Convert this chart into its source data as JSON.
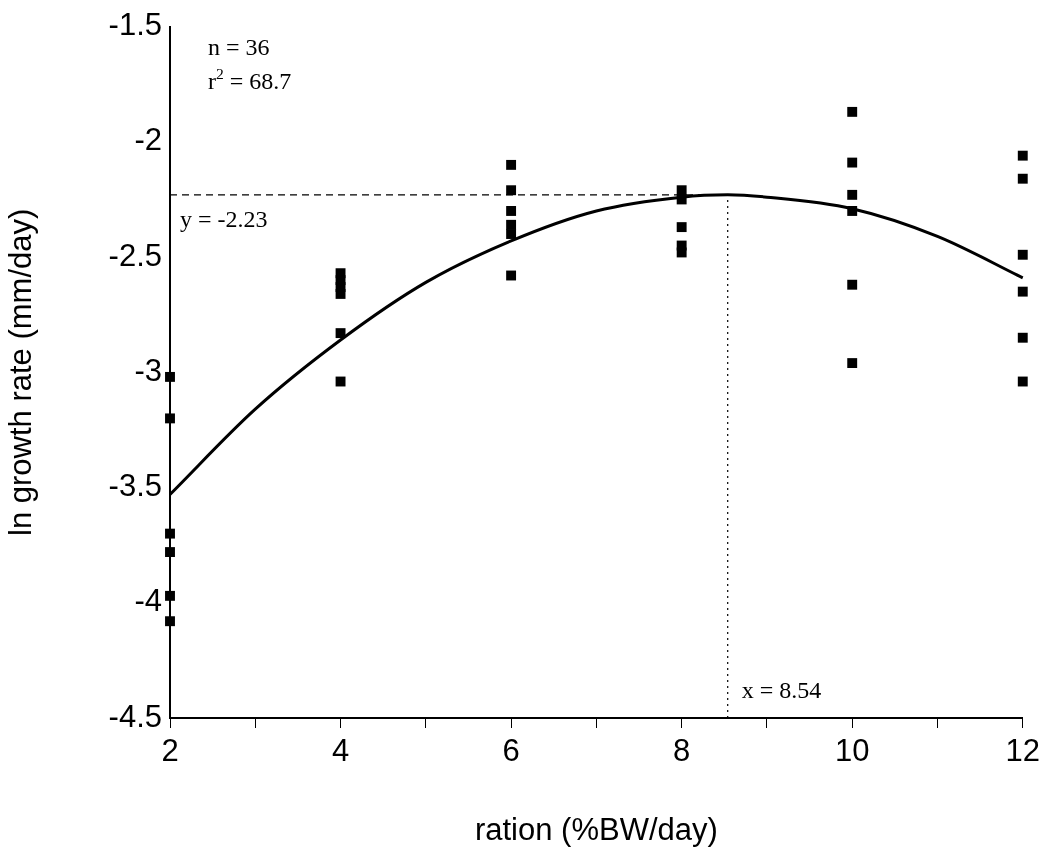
{
  "chart_data": {
    "type": "scatter",
    "xlabel": "ration (%BW/day)",
    "ylabel": "ln growth rate (mm/day)",
    "xlim": [
      2,
      12
    ],
    "ylim": [
      -4.5,
      -1.5
    ],
    "xticks": [
      2,
      {
        "value": 3,
        "label": null
      },
      4,
      {
        "value": 5,
        "label": null
      },
      6,
      {
        "value": 7,
        "label": null
      },
      8,
      {
        "value": 9,
        "label": null
      },
      10,
      {
        "value": 11,
        "label": null
      },
      12
    ],
    "yticks": [
      -4.5,
      -4,
      -3.5,
      -3,
      -2.5,
      -2,
      -1.5
    ],
    "grid": false,
    "legend": false,
    "marker": "square",
    "annotations": [
      "n = 36",
      "r$^{2}$ = 68.7"
    ],
    "ref_lines": [
      {
        "axis": "y",
        "value": -2.23,
        "label": "y = -2.23",
        "line_style": "dashed",
        "color": "#000000"
      },
      {
        "axis": "x",
        "value": 8.54,
        "label": "x = 8.54",
        "line_style": "dotted",
        "color": "#000000"
      }
    ],
    "series": [
      {
        "color": "#000000",
        "x": [
          2,
          2,
          2,
          2,
          2,
          2,
          4,
          4,
          4,
          4,
          4,
          4,
          6,
          6,
          6,
          6,
          6,
          6,
          8,
          8,
          8,
          8,
          8,
          10,
          10,
          10,
          10,
          10,
          10,
          12,
          12,
          12,
          12,
          12,
          12
        ],
        "values": [
          -3.02,
          -3.2,
          -3.7,
          -3.78,
          -3.97,
          -4.08,
          -2.57,
          -2.6,
          -2.63,
          -2.66,
          -2.83,
          -3.04,
          -2.1,
          -2.21,
          -2.3,
          -2.36,
          -2.4,
          -2.58,
          -2.21,
          -2.25,
          -2.37,
          -2.45,
          -2.48,
          -1.87,
          -2.09,
          -2.23,
          -2.3,
          -2.62,
          -2.96,
          -2.06,
          -2.16,
          -2.49,
          -2.65,
          -2.85,
          -3.04
        ]
      },
      {
        "type": "line",
        "color": "#000000",
        "marker": "none",
        "line_style": "solid",
        "x": [
          2,
          3,
          4,
          5,
          6,
          7,
          8,
          8.54,
          9,
          10,
          11,
          12
        ],
        "values": [
          -3.53,
          -3.16,
          -2.86,
          -2.61,
          -2.43,
          -2.3,
          -2.24,
          -2.23,
          -2.24,
          -2.29,
          -2.41,
          -2.59
        ]
      }
    ]
  }
}
